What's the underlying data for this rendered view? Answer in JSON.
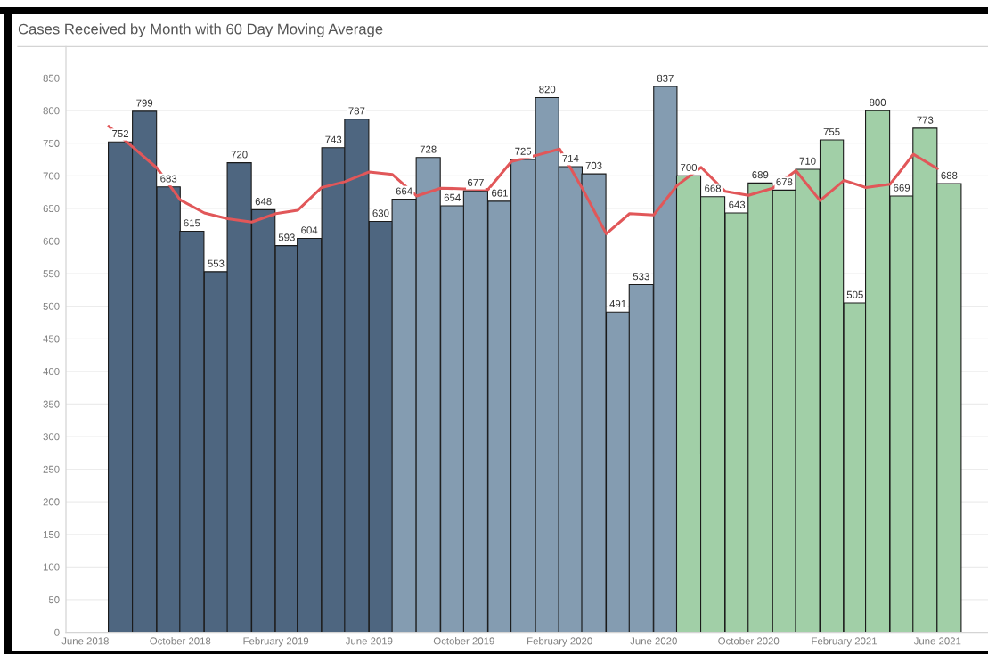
{
  "chart_data": {
    "type": "bar",
    "title": "Cases Received by Month with 60 Day Moving Average",
    "series": [
      {
        "data_labels": true,
        "x": [
          "2018-07-16",
          "2018-08-16",
          "2018-09-16",
          "2018-10-16",
          "2018-11-16",
          "2018-12-16",
          "2019-01-16",
          "2019-02-15",
          "2019-03-16",
          "2019-04-16",
          "2019-05-16",
          "2019-06-16",
          "2019-07-16",
          "2019-08-16",
          "2019-09-16",
          "2019-10-16",
          "2019-11-16",
          "2019-12-16",
          "2020-01-16",
          "2020-02-15",
          "2020-03-16",
          "2020-04-16",
          "2020-05-16",
          "2020-06-16",
          "2020-07-16",
          "2020-08-16",
          "2020-09-16",
          "2020-10-16",
          "2020-11-16",
          "2020-12-16",
          "2021-01-16",
          "2021-02-15",
          "2021-03-16",
          "2021-04-16",
          "2021-05-16",
          "2021-06-16"
        ],
        "values": [
          752,
          799,
          683,
          615,
          553,
          720,
          648,
          593,
          604,
          743,
          787,
          630,
          664,
          728,
          654,
          677,
          661,
          725,
          820,
          714,
          703,
          491,
          533,
          837,
          700,
          668,
          643,
          689,
          678,
          710,
          755,
          505,
          800,
          669,
          773,
          688
        ],
        "colors": [
          "#4e6680",
          "#4e6680",
          "#4e6680",
          "#4e6680",
          "#4e6680",
          "#4e6680",
          "#4e6680",
          "#4e6680",
          "#4e6680",
          "#4e6680",
          "#4e6680",
          "#4e6680",
          "#849cb1",
          "#849cb1",
          "#849cb1",
          "#849cb1",
          "#849cb1",
          "#849cb1",
          "#849cb1",
          "#849cb1",
          "#849cb1",
          "#849cb1",
          "#849cb1",
          "#849cb1",
          "#a1cfa7",
          "#a1cfa7",
          "#a1cfa7",
          "#a1cfa7",
          "#a1cfa7",
          "#a1cfa7",
          "#a1cfa7",
          "#a1cfa7",
          "#a1cfa7",
          "#a1cfa7",
          "#a1cfa7",
          "#a1cfa7"
        ]
      },
      {
        "type": "line",
        "color": "#e15759",
        "x": [
          "2018-07",
          "2018-08",
          "2018-09",
          "2018-10",
          "2018-11",
          "2018-12",
          "2019-01",
          "2019-02",
          "2019-03",
          "2019-04",
          "2019-05",
          "2019-06",
          "2019-07",
          "2019-08",
          "2019-09",
          "2019-10",
          "2019-11",
          "2019-12",
          "2020-01",
          "2020-02",
          "2020-03",
          "2020-04",
          "2020-05",
          "2020-06",
          "2020-07",
          "2020-08",
          "2020-09",
          "2020-10",
          "2020-11",
          "2020-12",
          "2021-01",
          "2021-02",
          "2021-03",
          "2021-04",
          "2021-05",
          "2021-06"
        ],
        "values": [
          776,
          744,
          712,
          663,
          643,
          634,
          629,
          642,
          647,
          682,
          691,
          706,
          702,
          669,
          681,
          680,
          679,
          722,
          731,
          741,
          681,
          611,
          642,
          640,
          685,
          713,
          676,
          670,
          681,
          708,
          662,
          693,
          682,
          687,
          733,
          711
        ]
      }
    ],
    "xlim": [
      "2018-05-07",
      "2021-08-05"
    ],
    "xticks": [
      {
        "value": "2018-06",
        "label": "June 2018"
      },
      {
        "value": "2018-10",
        "label": "October 2018"
      },
      {
        "value": "2019-02",
        "label": "February 2019"
      },
      {
        "value": "2019-06",
        "label": "June 2019"
      },
      {
        "value": "2019-10",
        "label": "October 2019"
      },
      {
        "value": "2020-02",
        "label": "February 2020"
      },
      {
        "value": "2020-06",
        "label": "June 2020"
      },
      {
        "value": "2020-10",
        "label": "October 2020"
      },
      {
        "value": "2021-02",
        "label": "February 2021"
      },
      {
        "value": "2021-06",
        "label": "June 2021"
      }
    ],
    "ylim": [
      0,
      898
    ],
    "yticks": [
      0,
      50,
      100,
      150,
      200,
      250,
      300,
      350,
      400,
      450,
      500,
      550,
      600,
      650,
      700,
      750,
      800,
      850
    ],
    "grid": "y"
  }
}
